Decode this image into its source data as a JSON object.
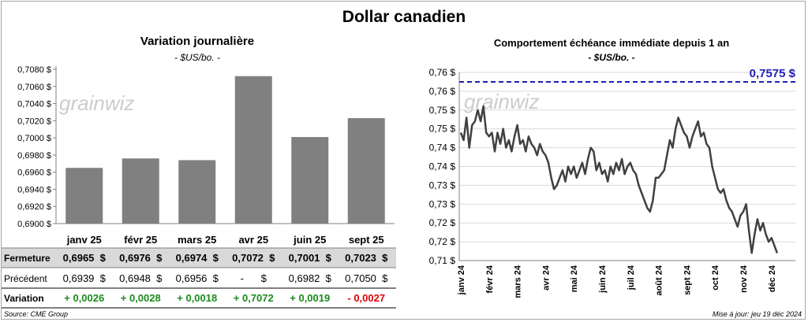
{
  "title": "Dollar canadien",
  "left_chart": {
    "title": "Variation journalière",
    "subtitle": "- $US/bo. -",
    "watermark": "grainwiz"
  },
  "right_chart": {
    "title": "Comportement échéance immédiate depuis 1 an",
    "subtitle": "- $US/bo. -",
    "watermark": "grainwiz",
    "reference_label": "0,7575 $"
  },
  "table": {
    "rows": [
      {
        "label": "Fermeture",
        "cells": [
          "0,6965  $",
          "0,6976  $",
          "0,6974  $",
          "0,7072  $",
          "0,7001  $",
          "0,7023  $"
        ]
      },
      {
        "label": "Précédent",
        "cells": [
          "0,6939  $",
          "0,6948  $",
          "0,6956  $",
          "-      $",
          "0,6982  $",
          "0,7050  $"
        ]
      },
      {
        "label": "Variation",
        "cells": [
          "+ 0,0026",
          "+ 0,0028",
          "+ 0,0018",
          "+ 0,7072",
          "+ 0,0019",
          "- 0,0027"
        ]
      }
    ],
    "variation_colors": [
      "#1a8a1a",
      "#1a8a1a",
      "#1a8a1a",
      "#1a8a1a",
      "#1a8a1a",
      "#e00000"
    ]
  },
  "footer": {
    "source": "Source: CME Group",
    "updated": "Mise à jour: jeu 19 déc 2024"
  },
  "chart_data": [
    {
      "type": "bar",
      "title": "Variation journalière",
      "categories": [
        "janv 25",
        "févr 25",
        "mars 25",
        "avr 25",
        "juin 25",
        "sept 25"
      ],
      "values": [
        0.6965,
        0.6976,
        0.6974,
        0.7072,
        0.7001,
        0.7023
      ],
      "ylim": [
        0.69,
        0.708
      ],
      "yticks": [
        "0,6900 $",
        "0,6920 $",
        "0,6940 $",
        "0,6960 $",
        "0,6980 $",
        "0,7000 $",
        "0,7020 $",
        "0,7040 $",
        "0,7060 $",
        "0,7080 $"
      ],
      "ytick_values": [
        0.69,
        0.692,
        0.694,
        0.696,
        0.698,
        0.7,
        0.702,
        0.704,
        0.706,
        0.708
      ],
      "grid": false,
      "color": "#808080"
    },
    {
      "type": "line",
      "title": "Comportement échéance immédiate depuis 1 an",
      "x_labels": [
        "janv 24",
        "févr 24",
        "mars 24",
        "avr 24",
        "mai 24",
        "juin 24",
        "juil 24",
        "août 24",
        "sept 24",
        "oct 24",
        "nov 24",
        "déc 24"
      ],
      "yticks": [
        "0,71 $",
        "0,72 $",
        "0,72 $",
        "0,73 $",
        "0,73 $",
        "0,74 $",
        "0,74 $",
        "0,75 $",
        "0,75 $",
        "0,76 $",
        "0,76 $"
      ],
      "ytick_values": [
        0.71,
        0.715,
        0.72,
        0.725,
        0.73,
        0.735,
        0.74,
        0.745,
        0.75,
        0.755,
        0.76
      ],
      "ylim": [
        0.71,
        0.76
      ],
      "reference_value": 0.7575,
      "reference_color": "#1f1fb4",
      "line_color": "#404040",
      "grid": true,
      "month_values": [
        [
          0.744,
          0.742,
          0.748,
          0.74,
          0.746,
          0.747,
          0.75,
          0.747,
          0.751,
          0.744
        ],
        [
          0.743,
          0.744,
          0.739,
          0.744,
          0.741,
          0.745,
          0.74,
          0.742,
          0.739,
          0.743
        ],
        [
          0.746,
          0.741,
          0.742,
          0.739,
          0.743,
          0.741,
          0.74,
          0.738,
          0.741,
          0.739
        ],
        [
          0.738,
          0.736,
          0.732,
          0.729,
          0.73,
          0.732,
          0.734,
          0.731,
          0.735,
          0.733
        ],
        [
          0.735,
          0.732,
          0.734,
          0.736,
          0.733,
          0.737,
          0.74,
          0.739,
          0.734,
          0.736
        ],
        [
          0.733,
          0.734,
          0.731,
          0.735,
          0.733,
          0.736,
          0.734,
          0.737,
          0.733,
          0.735
        ],
        [
          0.736,
          0.734,
          0.733,
          0.73,
          0.728,
          0.726,
          0.724,
          0.723,
          0.726,
          0.732
        ],
        [
          0.732,
          0.733,
          0.734,
          0.738,
          0.742,
          0.74,
          0.745,
          0.748,
          0.746,
          0.744
        ],
        [
          0.743,
          0.74,
          0.743,
          0.745,
          0.747,
          0.743,
          0.744,
          0.741,
          0.74,
          0.735
        ],
        [
          0.732,
          0.729,
          0.728,
          0.729,
          0.726,
          0.724,
          0.723,
          0.721,
          0.719,
          0.722
        ],
        [
          0.723,
          0.725,
          0.718,
          0.712,
          0.717,
          0.721,
          0.718,
          0.72,
          0.717,
          0.715
        ],
        [
          0.716,
          0.714,
          0.712
        ]
      ]
    }
  ]
}
